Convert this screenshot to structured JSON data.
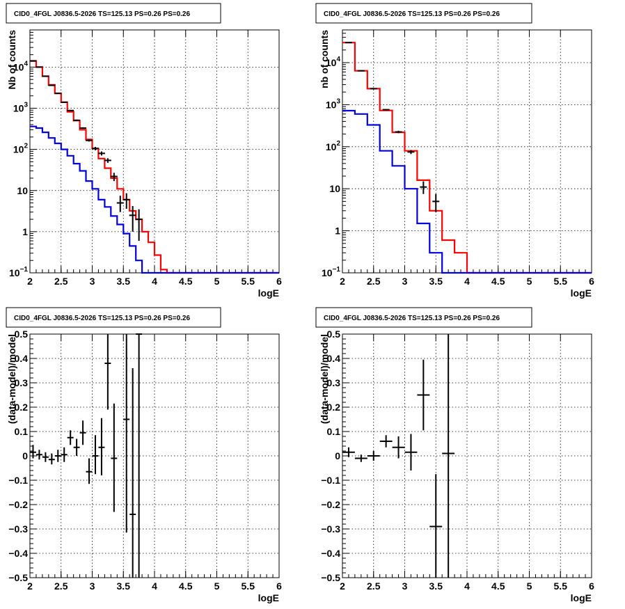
{
  "colors": {
    "data": "#000000",
    "model_total": "#ff0000",
    "model_component": "#0000dd"
  },
  "chart_data": [
    {
      "type": "line",
      "title": "CID0_4FGL J0836.5-2026 TS=125.13 PS=0.26 PS=0.26",
      "xlabel": "logE",
      "ylabel": "Nb of counts",
      "xlim": [
        2,
        6
      ],
      "ylim": [
        0.1,
        80000
      ],
      "yscale": "log",
      "grid": true,
      "xticks": [
        "2",
        "2.5",
        "3",
        "3.5",
        "4",
        "4.5",
        "5",
        "5.5",
        "6"
      ],
      "yticks": [
        {
          "v": 0.1,
          "label": "10",
          "sup": "−1"
        },
        {
          "v": 1,
          "label": "1"
        },
        {
          "v": 10,
          "label": "10"
        },
        {
          "v": 100,
          "label": "10",
          "sup": "2"
        },
        {
          "v": 1000,
          "label": "10",
          "sup": "3"
        },
        {
          "v": 10000,
          "label": "10",
          "sup": "4"
        }
      ],
      "bin_edges": [
        2.0,
        2.1,
        2.2,
        2.3,
        2.4,
        2.5,
        2.6,
        2.7,
        2.8,
        2.9,
        3.0,
        3.1,
        3.2,
        3.3,
        3.4,
        3.5,
        3.6,
        3.7,
        3.8,
        3.9,
        4.0,
        4.1,
        4.2,
        4.3,
        4.4,
        4.5,
        4.6,
        4.7,
        4.8,
        4.9,
        5.0,
        5.1,
        5.2,
        5.3,
        5.4,
        5.5,
        5.6,
        5.7,
        5.8,
        5.9,
        6.0
      ],
      "series": [
        {
          "color": "#ff0000",
          "values": [
            14000,
            10000,
            6000,
            3700,
            2300,
            1400,
            820,
            500,
            300,
            175,
            105,
            60,
            35,
            20,
            11,
            6,
            3.2,
            2,
            1,
            0.55,
            0.27,
            0.12,
            0.09,
            0.09,
            0.09,
            0.09,
            0.09,
            0.09,
            0.09,
            0.09,
            0.09,
            0.09,
            0.09,
            0.09,
            0.09,
            0.09,
            0.09,
            0.09,
            0.09,
            0.09
          ]
        },
        {
          "color": "#0000dd",
          "values": [
            360,
            330,
            260,
            190,
            140,
            100,
            70,
            45,
            30,
            17,
            11,
            6,
            4,
            2.4,
            1.5,
            0.9,
            0.45,
            0.2,
            0.09,
            0.09,
            0.09,
            0.09,
            0.09,
            0.09,
            0.09,
            0.09,
            0.09,
            0.09,
            0.09,
            0.09,
            0.09,
            0.09,
            0.09,
            0.09,
            0.09,
            0.09,
            0.09,
            0.09,
            0.09,
            0.09
          ]
        }
      ],
      "points": [
        {
          "x": 2.05,
          "y": 14200,
          "ylo": 14000,
          "yhi": 14400
        },
        {
          "x": 2.15,
          "y": 10000,
          "ylo": 9800,
          "yhi": 10200
        },
        {
          "x": 2.25,
          "y": 6000,
          "ylo": 5900,
          "yhi": 6100
        },
        {
          "x": 2.35,
          "y": 3600,
          "ylo": 3530,
          "yhi": 3670
        },
        {
          "x": 2.45,
          "y": 2300,
          "ylo": 2250,
          "yhi": 2350
        },
        {
          "x": 2.55,
          "y": 1400,
          "ylo": 1360,
          "yhi": 1440
        },
        {
          "x": 2.65,
          "y": 880,
          "ylo": 850,
          "yhi": 910
        },
        {
          "x": 2.75,
          "y": 510,
          "ylo": 490,
          "yhi": 530
        },
        {
          "x": 2.85,
          "y": 330,
          "ylo": 315,
          "yhi": 345
        },
        {
          "x": 2.95,
          "y": 165,
          "ylo": 155,
          "yhi": 175
        },
        {
          "x": 3.05,
          "y": 105,
          "ylo": 95,
          "yhi": 115
        },
        {
          "x": 3.15,
          "y": 80,
          "ylo": 71,
          "yhi": 89
        },
        {
          "x": 3.25,
          "y": 54,
          "ylo": 47,
          "yhi": 61
        },
        {
          "x": 3.35,
          "y": 22,
          "ylo": 17,
          "yhi": 27
        },
        {
          "x": 3.45,
          "y": 5,
          "ylo": 3,
          "yhi": 7.5
        },
        {
          "x": 3.55,
          "y": 6,
          "ylo": 3.6,
          "yhi": 8.6
        },
        {
          "x": 3.65,
          "y": 2.5,
          "ylo": 1,
          "yhi": 4.2
        },
        {
          "x": 3.75,
          "y": 2,
          "ylo": 0.6,
          "yhi": 3.5
        }
      ]
    },
    {
      "type": "line",
      "title": "CID0_4FGL J0836.5-2026 TS=125.13 PS=0.26 PS=0.26",
      "xlabel": "logE",
      "ylabel": "nb of counts",
      "xlim": [
        2,
        6
      ],
      "ylim": [
        0.1,
        60000
      ],
      "yscale": "log",
      "grid": true,
      "xticks": [
        "2",
        "2.5",
        "3",
        "3.5",
        "4",
        "4.5",
        "5",
        "5.5",
        "6"
      ],
      "yticks": [
        {
          "v": 0.1,
          "label": "10",
          "sup": "−1"
        },
        {
          "v": 1,
          "label": "1"
        },
        {
          "v": 10,
          "label": "10"
        },
        {
          "v": 100,
          "label": "10",
          "sup": "2"
        },
        {
          "v": 1000,
          "label": "10",
          "sup": "3"
        },
        {
          "v": 10000,
          "label": "10",
          "sup": "4"
        }
      ],
      "bin_edges": [
        2.0,
        2.2,
        2.4,
        2.6,
        2.8,
        3.0,
        3.2,
        3.4,
        3.6,
        3.8,
        4.0,
        4.2,
        4.4,
        4.6,
        4.8,
        5.0,
        5.2,
        5.4,
        5.6,
        5.8,
        6.0
      ],
      "series": [
        {
          "color": "#ff0000",
          "values": [
            30000,
            6400,
            2400,
            730,
            220,
            80,
            16,
            3,
            0.6,
            0.3,
            0.09,
            0.09,
            0.09,
            0.09,
            0.09,
            0.09,
            0.09,
            0.09,
            0.09,
            0.09
          ]
        },
        {
          "color": "#0000dd",
          "values": [
            720,
            600,
            330,
            80,
            35,
            10,
            1.5,
            0.3,
            0.09,
            0.09,
            0.09,
            0.09,
            0.09,
            0.09,
            0.09,
            0.09,
            0.09,
            0.09,
            0.09,
            0.09
          ]
        }
      ],
      "points": [
        {
          "x": 2.1,
          "y": 30000,
          "ylo": 29700,
          "yhi": 30300
        },
        {
          "x": 2.3,
          "y": 6400,
          "ylo": 6300,
          "yhi": 6500
        },
        {
          "x": 2.5,
          "y": 2400,
          "ylo": 2350,
          "yhi": 2450
        },
        {
          "x": 2.7,
          "y": 760,
          "ylo": 735,
          "yhi": 785
        },
        {
          "x": 2.9,
          "y": 225,
          "ylo": 210,
          "yhi": 240
        },
        {
          "x": 3.1,
          "y": 75,
          "ylo": 67,
          "yhi": 83
        },
        {
          "x": 3.3,
          "y": 11,
          "ylo": 7.5,
          "yhi": 15
        },
        {
          "x": 3.5,
          "y": 5,
          "ylo": 2.8,
          "yhi": 7.5
        }
      ]
    },
    {
      "type": "scatter",
      "title": "CID0_4FGL J0836.5-2026 TS=125.13 PS=0.26 PS=0.26",
      "xlabel": "logE",
      "ylabel": "(data-model)/model",
      "xlim": [
        2,
        6
      ],
      "ylim": [
        -0.5,
        0.5
      ],
      "yscale": "linear",
      "grid": true,
      "xticks": [
        "2",
        "2.5",
        "3",
        "3.5",
        "4",
        "4.5",
        "5",
        "5.5",
        "6"
      ],
      "yticks": [
        {
          "v": -0.5,
          "label": "−0.5"
        },
        {
          "v": -0.4,
          "label": "−0.4"
        },
        {
          "v": -0.3,
          "label": "−0.3"
        },
        {
          "v": -0.2,
          "label": "−0.2"
        },
        {
          "v": -0.1,
          "label": "−0.1"
        },
        {
          "v": 0,
          "label": "0"
        },
        {
          "v": 0.1,
          "label": "0.1"
        },
        {
          "v": 0.2,
          "label": "0.2"
        },
        {
          "v": 0.3,
          "label": "0.3"
        },
        {
          "v": 0.4,
          "label": "0.4"
        },
        {
          "v": 0.5,
          "label": "0.5"
        }
      ],
      "xerr": 0.05,
      "points": [
        {
          "x": 2.05,
          "y": 0.015,
          "ylo": -0.01,
          "yhi": 0.045
        },
        {
          "x": 2.15,
          "y": 0.005,
          "ylo": -0.015,
          "yhi": 0.025
        },
        {
          "x": 2.25,
          "y": -0.005,
          "ylo": -0.025,
          "yhi": 0.015
        },
        {
          "x": 2.35,
          "y": -0.015,
          "ylo": -0.035,
          "yhi": 0.01
        },
        {
          "x": 2.45,
          "y": 0.0,
          "ylo": -0.025,
          "yhi": 0.025
        },
        {
          "x": 2.55,
          "y": 0.005,
          "ylo": -0.025,
          "yhi": 0.035
        },
        {
          "x": 2.65,
          "y": 0.075,
          "ylo": 0.045,
          "yhi": 0.105
        },
        {
          "x": 2.75,
          "y": 0.035,
          "ylo": 0.0,
          "yhi": 0.07
        },
        {
          "x": 2.85,
          "y": 0.095,
          "ylo": 0.045,
          "yhi": 0.145
        },
        {
          "x": 2.95,
          "y": -0.065,
          "ylo": -0.115,
          "yhi": -0.01
        },
        {
          "x": 3.05,
          "y": 0.0,
          "ylo": -0.075,
          "yhi": 0.085
        },
        {
          "x": 3.15,
          "y": 0.035,
          "ylo": -0.08,
          "yhi": 0.155
        },
        {
          "x": 3.25,
          "y": 0.38,
          "ylo": 0.19,
          "yhi": 0.5
        },
        {
          "x": 3.35,
          "y": -0.01,
          "ylo": -0.23,
          "yhi": 0.215
        },
        {
          "x": 3.55,
          "y": 0.15,
          "ylo": -0.315,
          "yhi": 0.5
        },
        {
          "x": 3.65,
          "y": -0.24,
          "ylo": -0.5,
          "yhi": 0.36
        },
        {
          "x": 3.75,
          "y": 0.5,
          "ylo": -0.5,
          "yhi": 0.5
        }
      ]
    },
    {
      "type": "scatter",
      "title": "CID0_4FGL J0836.5-2026 TS=125.13 PS=0.26 PS=0.26",
      "xlabel": "logE",
      "ylabel": "(data-model)/model",
      "xlim": [
        2,
        6
      ],
      "ylim": [
        -0.5,
        0.5
      ],
      "yscale": "linear",
      "grid": true,
      "xticks": [
        "2",
        "2.5",
        "3",
        "3.5",
        "4",
        "4.5",
        "5",
        "5.5",
        "6"
      ],
      "yticks": [
        {
          "v": -0.5,
          "label": "−0.5"
        },
        {
          "v": -0.4,
          "label": "−0.4"
        },
        {
          "v": -0.3,
          "label": "−0.3"
        },
        {
          "v": -0.2,
          "label": "−0.2"
        },
        {
          "v": -0.1,
          "label": "−0.1"
        },
        {
          "v": 0,
          "label": "0"
        },
        {
          "v": 0.1,
          "label": "0.1"
        },
        {
          "v": 0.2,
          "label": "0.2"
        },
        {
          "v": 0.3,
          "label": "0.3"
        },
        {
          "v": 0.4,
          "label": "0.4"
        },
        {
          "v": 0.5,
          "label": "0.5"
        }
      ],
      "xerr": 0.1,
      "points": [
        {
          "x": 2.1,
          "y": 0.015,
          "ylo": -0.005,
          "yhi": 0.035
        },
        {
          "x": 2.3,
          "y": -0.01,
          "ylo": -0.025,
          "yhi": 0.005
        },
        {
          "x": 2.5,
          "y": 0.0,
          "ylo": -0.02,
          "yhi": 0.02
        },
        {
          "x": 2.7,
          "y": 0.06,
          "ylo": 0.035,
          "yhi": 0.085
        },
        {
          "x": 2.9,
          "y": 0.035,
          "ylo": -0.01,
          "yhi": 0.08
        },
        {
          "x": 3.1,
          "y": 0.015,
          "ylo": -0.06,
          "yhi": 0.09
        },
        {
          "x": 3.3,
          "y": 0.25,
          "ylo": 0.105,
          "yhi": 0.395
        },
        {
          "x": 3.5,
          "y": -0.29,
          "ylo": -0.5,
          "yhi": -0.075
        },
        {
          "x": 3.7,
          "y": 0.01,
          "ylo": -0.5,
          "yhi": 0.5
        }
      ]
    }
  ]
}
